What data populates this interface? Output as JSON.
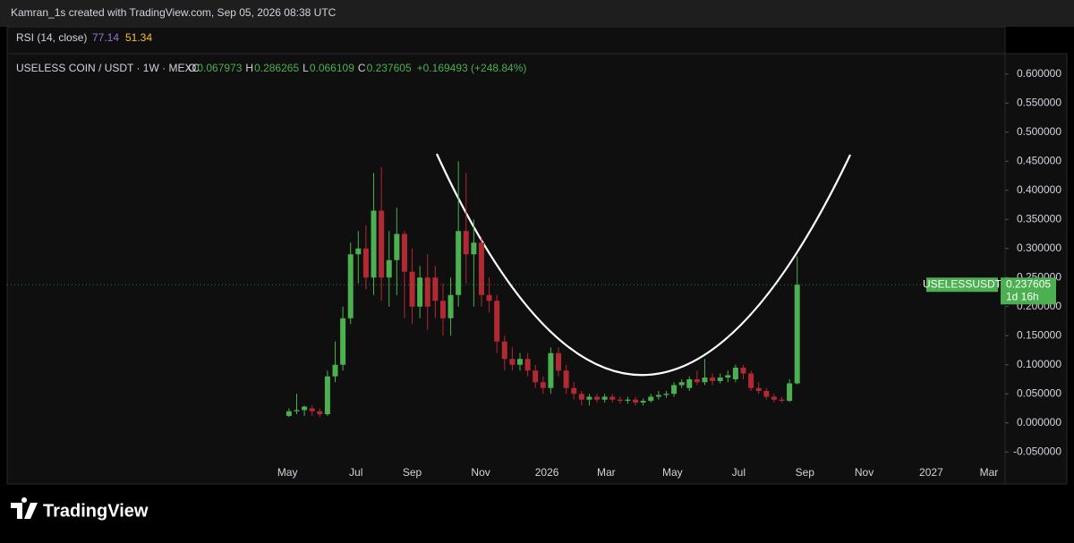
{
  "header": {
    "author_line": "Kamran_1s created with TradingView.com, Sep 05, 2026 08:38 UTC",
    "brand": "TradingView"
  },
  "chart_data": {
    "type": "candlestick",
    "symbol_line": "USELESS COIN / USDT · 1W · MEXC",
    "ohlc_labels": [
      "O",
      "H",
      "L",
      "C"
    ],
    "change": "+0.169493 (+248.84%)",
    "indicator": {
      "name": "RSI (14, close)",
      "values": [
        77.14,
        51.34
      ],
      "colors": [
        "#9575cd",
        "#fbc02d"
      ]
    },
    "price_label": {
      "symbol": "USELESSUSDT",
      "countdown": "1d 16h"
    },
    "up_color": "#4caf50",
    "down_color": "#b22833",
    "open": [
      0.012,
      0.02,
      0.022,
      0.025,
      0.02,
      0.015,
      0.08,
      0.1,
      0.18,
      0.29,
      0.3,
      0.25,
      0.365,
      0.25,
      0.28,
      0.325,
      0.26,
      0.2,
      0.25,
      0.25,
      0.21,
      0.18,
      0.22,
      0.33,
      0.29,
      0.31,
      0.22,
      0.21,
      0.14,
      0.11,
      0.1,
      0.11,
      0.09,
      0.07,
      0.06,
      0.12,
      0.09,
      0.06,
      0.05,
      0.04,
      0.045,
      0.04,
      0.045,
      0.04,
      0.038,
      0.04,
      0.035,
      0.038,
      0.045,
      0.048,
      0.05,
      0.065,
      0.06,
      0.075,
      0.07,
      0.078,
      0.072,
      0.078,
      0.075,
      0.095,
      0.085,
      0.06,
      0.055,
      0.045,
      0.04,
      0.038,
      0.067973
    ],
    "high": [
      0.025,
      0.05,
      0.03,
      0.03,
      0.025,
      0.09,
      0.14,
      0.2,
      0.31,
      0.33,
      0.34,
      0.43,
      0.44,
      0.33,
      0.37,
      0.33,
      0.3,
      0.27,
      0.29,
      0.27,
      0.24,
      0.25,
      0.45,
      0.43,
      0.35,
      0.32,
      0.25,
      0.22,
      0.15,
      0.13,
      0.12,
      0.12,
      0.1,
      0.08,
      0.13,
      0.13,
      0.1,
      0.07,
      0.055,
      0.05,
      0.05,
      0.05,
      0.05,
      0.045,
      0.045,
      0.045,
      0.042,
      0.05,
      0.055,
      0.055,
      0.07,
      0.075,
      0.08,
      0.09,
      0.11,
      0.085,
      0.085,
      0.09,
      0.1,
      0.1,
      0.09,
      0.07,
      0.06,
      0.05,
      0.045,
      0.075,
      0.286265
    ],
    "low": [
      0.01,
      0.015,
      0.012,
      0.012,
      0.01,
      0.012,
      0.07,
      0.09,
      0.17,
      0.24,
      0.23,
      0.22,
      0.21,
      0.2,
      0.22,
      0.18,
      0.17,
      0.18,
      0.16,
      0.18,
      0.15,
      0.15,
      0.2,
      0.24,
      0.2,
      0.2,
      0.19,
      0.12,
      0.09,
      0.09,
      0.09,
      0.08,
      0.06,
      0.05,
      0.05,
      0.08,
      0.05,
      0.04,
      0.03,
      0.03,
      0.035,
      0.035,
      0.035,
      0.033,
      0.033,
      0.03,
      0.03,
      0.035,
      0.04,
      0.043,
      0.045,
      0.06,
      0.055,
      0.065,
      0.065,
      0.065,
      0.068,
      0.07,
      0.07,
      0.075,
      0.055,
      0.05,
      0.04,
      0.035,
      0.035,
      0.036,
      0.066109
    ],
    "close": [
      0.02,
      0.022,
      0.028,
      0.02,
      0.015,
      0.08,
      0.1,
      0.18,
      0.29,
      0.3,
      0.25,
      0.365,
      0.25,
      0.28,
      0.325,
      0.26,
      0.2,
      0.25,
      0.2,
      0.21,
      0.18,
      0.22,
      0.33,
      0.29,
      0.31,
      0.22,
      0.21,
      0.14,
      0.11,
      0.1,
      0.11,
      0.09,
      0.07,
      0.06,
      0.12,
      0.09,
      0.06,
      0.05,
      0.04,
      0.045,
      0.04,
      0.045,
      0.04,
      0.038,
      0.04,
      0.035,
      0.038,
      0.045,
      0.048,
      0.05,
      0.065,
      0.07,
      0.075,
      0.07,
      0.078,
      0.072,
      0.078,
      0.082,
      0.095,
      0.085,
      0.06,
      0.055,
      0.045,
      0.04,
      0.038,
      0.068,
      0.237605
    ],
    "xlim": [
      -36.6,
      93
    ],
    "xticks": [
      {
        "value": -0.2,
        "label": "May"
      },
      {
        "value": 8.7,
        "label": "Jul"
      },
      {
        "value": 16,
        "label": "Sep"
      },
      {
        "value": 24.9,
        "label": "Nov"
      },
      {
        "value": 33.5,
        "label": "2026"
      },
      {
        "value": 41.2,
        "label": "Mar"
      },
      {
        "value": 49.8,
        "label": "May"
      },
      {
        "value": 58.4,
        "label": "Jul"
      },
      {
        "value": 67,
        "label": "Sep"
      },
      {
        "value": 74.7,
        "label": "Nov"
      },
      {
        "value": 83.4,
        "label": "2027"
      },
      {
        "value": 90.9,
        "label": "Mar"
      }
    ],
    "ylim": [
      -0.065,
      0.635
    ],
    "yticks": [
      {
        "value": 0.6,
        "label": "0.600000"
      },
      {
        "value": 0.55,
        "label": "0.550000"
      },
      {
        "value": 0.5,
        "label": "0.500000"
      },
      {
        "value": 0.45,
        "label": "0.450000"
      },
      {
        "value": 0.4,
        "label": "0.400000"
      },
      {
        "value": 0.35,
        "label": "0.350000"
      },
      {
        "value": 0.3,
        "label": "0.300000"
      },
      {
        "value": 0.25,
        "label": "0.250000"
      },
      {
        "value": 0.2,
        "label": "0.200000"
      },
      {
        "value": 0.15,
        "label": "0.150000"
      },
      {
        "value": 0.1,
        "label": "0.100000"
      },
      {
        "value": 0.05,
        "label": "0.050000"
      },
      {
        "value": 0,
        "label": "0.000000"
      },
      {
        "value": -0.05,
        "label": "-0.050000"
      }
    ]
  }
}
